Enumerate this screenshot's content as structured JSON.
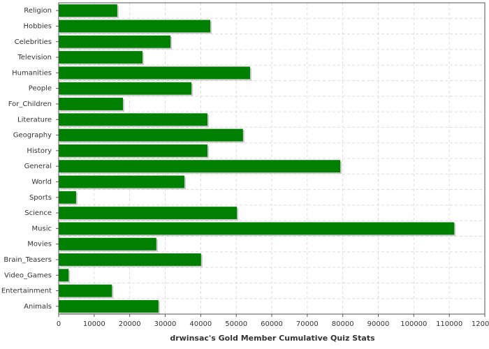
{
  "chart_data": {
    "type": "hbar",
    "xlabel": "drwinsac's Gold Member Cumulative Quiz Stats",
    "categories": [
      "Religion",
      "Hobbies",
      "Celebrities",
      "Television",
      "Humanities",
      "People",
      "For_Children",
      "Literature",
      "Geography",
      "History",
      "General",
      "World",
      "Sports",
      "Science",
      "Music",
      "Movies",
      "Brain_Teasers",
      "Video_Games",
      "Entertainment",
      "Animals"
    ],
    "values": [
      16500,
      42700,
      31500,
      23600,
      53900,
      37400,
      18100,
      41900,
      51900,
      41900,
      79300,
      35400,
      4900,
      50200,
      111400,
      27500,
      40100,
      2800,
      15000,
      28100
    ],
    "color": "#008000",
    "xlim": [
      0,
      120000
    ],
    "xticks": [
      0,
      10000,
      20000,
      30000,
      40000,
      50000,
      60000,
      70000,
      80000,
      90000,
      100000,
      110000,
      120000
    ],
    "grid": true
  }
}
